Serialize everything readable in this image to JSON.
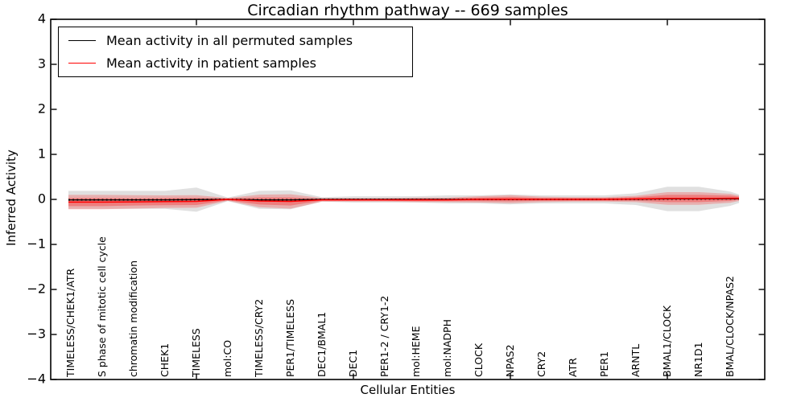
{
  "title": "Circadian rhythm pathway -- 669 samples",
  "axes": {
    "ylabel": "Inferred Activity",
    "xlabel": "Cellular Entities",
    "y_ticks": [
      "4",
      "3",
      "2",
      "1",
      "0",
      "−1",
      "−2",
      "−3",
      "−4"
    ]
  },
  "legend": {
    "items": [
      {
        "label": "Mean activity in all permuted samples",
        "color": "#000000"
      },
      {
        "label": "Mean activity in patient samples",
        "color": "#ff0000"
      }
    ]
  },
  "chart_data": {
    "type": "line",
    "title": "Circadian rhythm pathway -- 669 samples",
    "xlabel": "Cellular Entities",
    "ylabel": "Inferred Activity",
    "ylim": [
      -4,
      4
    ],
    "y_tick_values": [
      4,
      3,
      2,
      1,
      0,
      -1,
      -2,
      -3,
      -4
    ],
    "grid": false,
    "legend_position": "upper left",
    "categories": [
      "TIMELESS/CHEK1/ATR",
      "S phase of mitotic cell cycle",
      "chromatin modification",
      "CHEK1",
      "TIMELESS",
      "mol:CO",
      "TIMELESS/CRY2",
      "PER1/TIMELESS",
      "DEC1/BMAL1",
      "DEC1",
      "PER1-2 / CRY1-2",
      "mol:HEME",
      "mol:NADPH",
      "CLOCK",
      "NPAS2",
      "CRY2",
      "ATR",
      "PER1",
      "ARNTL",
      "BMAL1/CLOCK",
      "NR1D1",
      "BMAL/CLOCK/NPAS2"
    ],
    "xtick_indices": [
      4,
      9,
      14,
      19
    ],
    "series": [
      {
        "name": "Mean activity in all permuted samples",
        "color": "#000000",
        "style": "solid-with-dots",
        "values": [
          -0.01,
          -0.01,
          -0.01,
          -0.01,
          -0.005,
          0,
          -0.01,
          -0.01,
          0,
          0,
          0,
          0,
          0,
          0,
          0,
          0,
          0,
          0,
          0.005,
          0.01,
          0.01,
          0.015
        ]
      },
      {
        "name": "Mean activity in patient samples",
        "color": "#ff0000",
        "style": "solid",
        "values": [
          -0.06,
          -0.06,
          -0.055,
          -0.05,
          -0.045,
          0,
          -0.035,
          -0.045,
          -0.01,
          -0.01,
          -0.01,
          -0.01,
          -0.01,
          0,
          0.005,
          0,
          0,
          0,
          0.01,
          0.02,
          0.02,
          0.025
        ]
      },
      {
        "name": "permuted-envelope-halfwidth",
        "color": "rgba(0,0,0,0.12)",
        "style": "band",
        "values": [
          0.2,
          0.2,
          0.2,
          0.2,
          0.27,
          0.04,
          0.2,
          0.21,
          0.05,
          0.07,
          0.07,
          0.07,
          0.09,
          0.09,
          0.11,
          0.09,
          0.09,
          0.09,
          0.13,
          0.27,
          0.27,
          0.16
        ]
      },
      {
        "name": "patient-envelope-halfwidth",
        "color": "rgba(255,0,0,0.22)",
        "style": "band",
        "values": [
          0.16,
          0.16,
          0.15,
          0.14,
          0.14,
          0.03,
          0.14,
          0.16,
          0.04,
          0.04,
          0.04,
          0.05,
          0.05,
          0.07,
          0.09,
          0.06,
          0.05,
          0.05,
          0.07,
          0.14,
          0.14,
          0.1
        ]
      },
      {
        "name": "patient-envelope-inner-halfwidth",
        "color": "rgba(255,0,0,0.28)",
        "style": "band",
        "values": [
          0.09,
          0.09,
          0.08,
          0.08,
          0.08,
          0.02,
          0.08,
          0.09,
          0.02,
          0.02,
          0.02,
          0.03,
          0.03,
          0.04,
          0.05,
          0.03,
          0.03,
          0.03,
          0.04,
          0.08,
          0.08,
          0.06
        ]
      }
    ]
  }
}
